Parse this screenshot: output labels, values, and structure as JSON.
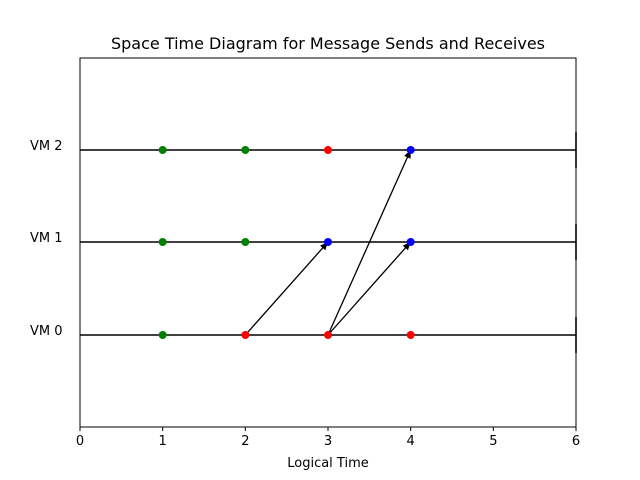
{
  "chart_data": {
    "type": "scatter",
    "title": "Space Time Diagram for Message Sends and Receives",
    "xlabel": "Logical Time",
    "ylabel": "",
    "xlim": [
      0,
      6
    ],
    "x_ticks": [
      "0",
      "1",
      "2",
      "3",
      "4",
      "5",
      "6"
    ],
    "grid": false,
    "lanes": [
      {
        "label": "VM 0",
        "index": 0
      },
      {
        "label": "VM 1",
        "index": 1
      },
      {
        "label": "VM 2",
        "index": 2
      }
    ],
    "lane_end_x": 6,
    "events": [
      {
        "vm": 0,
        "time": 1,
        "kind": "internal",
        "color": "#008000"
      },
      {
        "vm": 0,
        "time": 2,
        "kind": "send",
        "color": "#ff0000"
      },
      {
        "vm": 0,
        "time": 3,
        "kind": "send",
        "color": "#ff0000"
      },
      {
        "vm": 0,
        "time": 4,
        "kind": "send",
        "color": "#ff0000"
      },
      {
        "vm": 1,
        "time": 1,
        "kind": "internal",
        "color": "#008000"
      },
      {
        "vm": 1,
        "time": 2,
        "kind": "internal",
        "color": "#008000"
      },
      {
        "vm": 1,
        "time": 3,
        "kind": "receive",
        "color": "#0000ff"
      },
      {
        "vm": 1,
        "time": 4,
        "kind": "receive",
        "color": "#0000ff"
      },
      {
        "vm": 2,
        "time": 1,
        "kind": "internal",
        "color": "#008000"
      },
      {
        "vm": 2,
        "time": 2,
        "kind": "internal",
        "color": "#008000"
      },
      {
        "vm": 2,
        "time": 3,
        "kind": "send",
        "color": "#ff0000"
      },
      {
        "vm": 2,
        "time": 4,
        "kind": "receive",
        "color": "#0000ff"
      }
    ],
    "messages": [
      {
        "from_vm": 0,
        "from_time": 2,
        "to_vm": 1,
        "to_time": 3
      },
      {
        "from_vm": 0,
        "from_time": 3,
        "to_vm": 1,
        "to_time": 4
      },
      {
        "from_vm": 0,
        "from_time": 3,
        "to_vm": 2,
        "to_time": 4
      }
    ],
    "colors": {
      "internal": "#008000",
      "send": "#ff0000",
      "receive": "#0000ff",
      "line": "#000000"
    }
  }
}
